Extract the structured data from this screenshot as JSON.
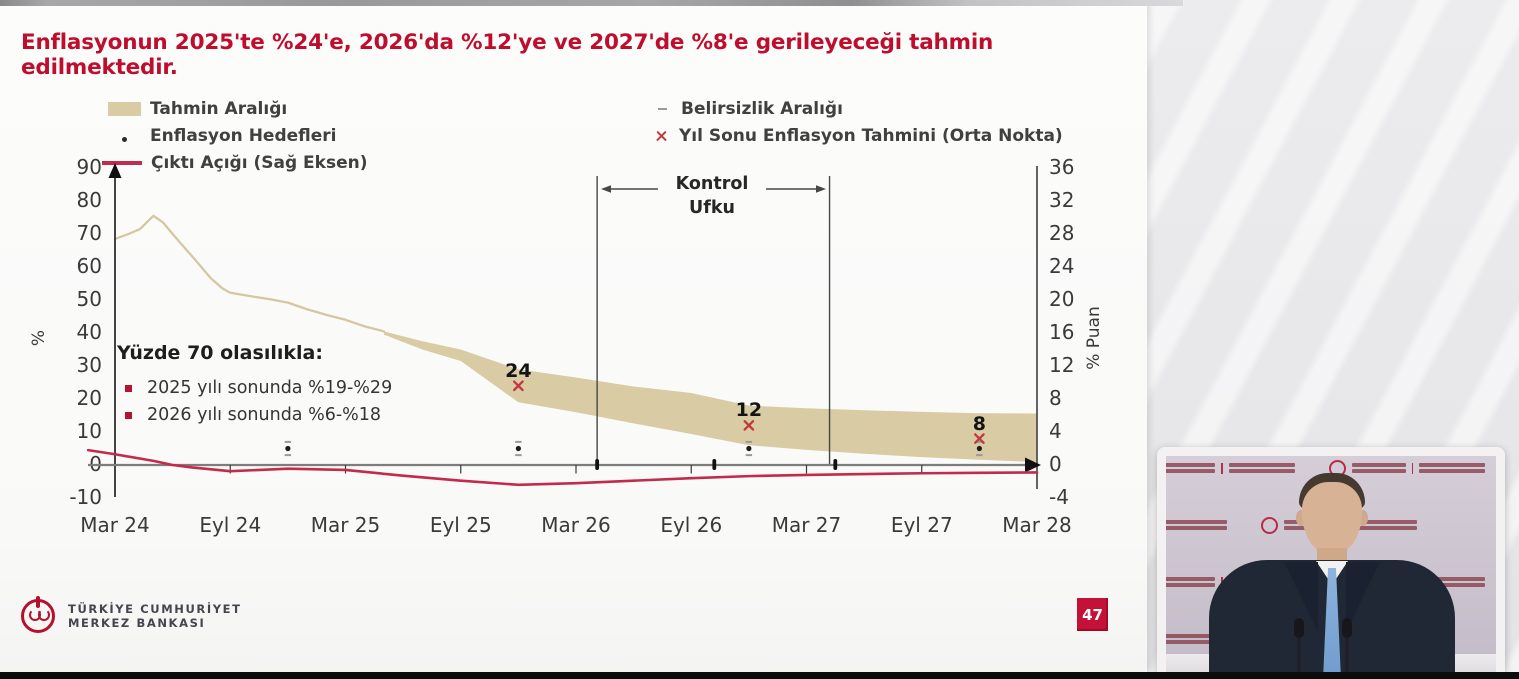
{
  "page": {
    "slide_title": "Enflasyonun 2025'te %24'e, 2026'da %12'ye ve 2027'de %8'e gerileyeceği tahmin edilmektedir.",
    "page_number": "47",
    "footer": {
      "bank_name_line1": "TÜRKİYE CUMHURİYET",
      "bank_name_line2": "MERKEZ BANKASI"
    }
  },
  "legend": {
    "left": [
      {
        "label": "Tahmin Aralığı",
        "swatch": "band"
      },
      {
        "label": "Enflasyon Hedefleri",
        "swatch": "dot"
      },
      {
        "label": "Çıktı Açığı (Sağ Eksen)",
        "swatch": "line"
      }
    ],
    "right": [
      {
        "label": "Belirsizlik Aralığı",
        "swatch": "dash"
      },
      {
        "label": "Yıl Sonu Enflasyon Tahmini (Orta Nokta)",
        "swatch": "x"
      }
    ]
  },
  "annotation": {
    "control_horizon_line1": "Kontrol",
    "control_horizon_line2": "Ufku",
    "probability_title": "Yüzde 70 olasılıkla:",
    "probability_items": [
      "2025 yılı sonunda %19-%29",
      "2026 yılı sonunda %6-%18"
    ]
  },
  "colors": {
    "title_red": "#bf0d2e",
    "band": "#d9cba4",
    "history_line": "#d5c7a1",
    "output_gap_line": "#c22a4e",
    "marker_x": "#c0393f",
    "target_dot": "#1c1c1c",
    "uncertainty_dash": "#9a9a9a",
    "badge_bg": "#c41137"
  },
  "chart_data": {
    "type": "line",
    "title": "Enflasyonun 2025'te %24'e, 2026'da %12'ye ve 2027'de %8'e gerileyeceği tahmin edilmektedir.",
    "x_axis": {
      "tick_labels": [
        "Mar 24",
        "Eyl 24",
        "Mar 25",
        "Eyl 25",
        "Mar 26",
        "Eyl 26",
        "Mar 27",
        "Eyl 27",
        "Mar 28"
      ],
      "months_span": 48
    },
    "left_axis": {
      "label": "%",
      "ticks": [
        90,
        80,
        70,
        60,
        50,
        40,
        30,
        20,
        10,
        0,
        -10
      ],
      "range": [
        -10,
        90
      ]
    },
    "right_axis": {
      "label": "% Puan",
      "ticks": [
        36,
        32,
        28,
        24,
        20,
        16,
        12,
        8,
        4,
        0,
        -4
      ],
      "range": [
        -4,
        36
      ]
    },
    "grid": false,
    "legend_position": "top",
    "control_horizon": {
      "label": "Kontrol Ufku",
      "start_month": 25.1,
      "end_month": 37.2,
      "axis_marks_months": [
        25.1,
        31.2,
        37.5
      ]
    },
    "series": [
      {
        "name": "Enflasyon (gerçekleşme)",
        "axis": "left",
        "type": "line",
        "color": "#d5c7a1",
        "points": [
          [
            0,
            68.5
          ],
          [
            0.7,
            70
          ],
          [
            1.3,
            71.5
          ],
          [
            2,
            75.5
          ],
          [
            2.5,
            73.5
          ],
          [
            3,
            70
          ],
          [
            3.6,
            66
          ],
          [
            4.2,
            62
          ],
          [
            5,
            56.5
          ],
          [
            5.6,
            53.5
          ],
          [
            6,
            52.2
          ],
          [
            7,
            51.2
          ],
          [
            8,
            50.3
          ],
          [
            9,
            49.2
          ],
          [
            10,
            47.2
          ],
          [
            11,
            45.5
          ],
          [
            12,
            44
          ],
          [
            13,
            42
          ],
          [
            14,
            40.5
          ]
        ]
      },
      {
        "name": "Tahmin Aralığı",
        "axis": "left",
        "type": "band",
        "color": "#d9cba4",
        "points": [
          [
            14,
            40.5,
            39.5
          ],
          [
            16,
            37.5,
            35
          ],
          [
            18,
            35,
            31.5
          ],
          [
            21,
            29,
            19
          ],
          [
            24,
            26.5,
            16
          ],
          [
            27,
            23.8,
            12.6
          ],
          [
            30,
            21.8,
            9.4
          ],
          [
            33,
            18,
            6
          ],
          [
            36,
            17.2,
            4.6
          ],
          [
            39,
            16.6,
            3.4
          ],
          [
            42,
            16.1,
            2.4
          ],
          [
            45,
            15.7,
            1.6
          ],
          [
            48,
            15.6,
            0.9
          ]
        ]
      },
      {
        "name": "Çıktı Açığı (Sağ Eksen)",
        "axis": "right",
        "type": "line",
        "color": "#c22a4e",
        "points": [
          [
            -1.4,
            1.8
          ],
          [
            0,
            1.3
          ],
          [
            2,
            0.5
          ],
          [
            3,
            0
          ],
          [
            4,
            -0.3
          ],
          [
            6,
            -0.75
          ],
          [
            9,
            -0.45
          ],
          [
            12,
            -0.6
          ],
          [
            15,
            -1.3
          ],
          [
            18,
            -1.9
          ],
          [
            21,
            -2.4
          ],
          [
            24,
            -2.2
          ],
          [
            27,
            -1.9
          ],
          [
            30,
            -1.6
          ],
          [
            33,
            -1.35
          ],
          [
            36,
            -1.2
          ],
          [
            39,
            -1.1
          ],
          [
            42,
            -1.0
          ],
          [
            45,
            -0.95
          ],
          [
            48,
            -0.9
          ]
        ]
      },
      {
        "name": "Yıl Sonu Enflasyon Tahmini (Orta Nokta)",
        "axis": "left",
        "type": "marker-x",
        "color": "#c0393f",
        "points": [
          [
            21,
            24
          ],
          [
            33,
            12
          ],
          [
            45,
            8
          ]
        ],
        "labels": [
          "24",
          "12",
          "8"
        ]
      },
      {
        "name": "Enflasyon Hedefleri",
        "axis": "left",
        "type": "marker-dot",
        "color": "#1c1c1c",
        "points": [
          [
            9,
            5
          ],
          [
            21,
            5
          ],
          [
            33,
            5
          ],
          [
            45,
            5
          ]
        ]
      },
      {
        "name": "Belirsizlik Aralığı",
        "axis": "left",
        "type": "marker-dash",
        "color": "#9a9a9a",
        "points": [
          [
            9,
            7
          ],
          [
            9,
            3
          ],
          [
            21,
            7
          ],
          [
            21,
            3
          ],
          [
            33,
            7
          ],
          [
            33,
            3
          ],
          [
            45,
            7
          ],
          [
            45,
            3
          ]
        ]
      }
    ]
  }
}
